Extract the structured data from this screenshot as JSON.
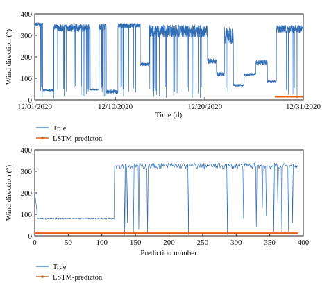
{
  "chart_data": [
    {
      "type": "line",
      "xlabel": "Time (d)",
      "ylabel": "Wind direction (°)",
      "x_ticks": [
        "12/01/2020",
        "12/10/2020",
        "12/20/2020",
        "12/31/2020"
      ],
      "x_tick_days": [
        0,
        9,
        19,
        30
      ],
      "xlim_days": [
        0,
        30
      ],
      "ylim": [
        0,
        400
      ],
      "y_ticks": [
        0,
        100,
        200,
        300,
        400
      ],
      "grid": false,
      "legend_position": "bottom-left-outside",
      "series": [
        {
          "name": "True",
          "color": "#2f6db5",
          "segments": [
            {
              "start_day": 0.0,
              "end_day": 0.9,
              "level": 350,
              "noise": 10,
              "dips": true
            },
            {
              "start_day": 0.9,
              "end_day": 2.1,
              "level": 45,
              "noise": 4,
              "dips": false
            },
            {
              "start_day": 2.1,
              "end_day": 6.2,
              "level": 335,
              "noise": 18,
              "dips": true
            },
            {
              "start_day": 6.2,
              "end_day": 7.2,
              "level": 48,
              "noise": 4,
              "dips": false
            },
            {
              "start_day": 7.2,
              "end_day": 8.0,
              "level": 340,
              "noise": 14,
              "dips": true
            },
            {
              "start_day": 8.0,
              "end_day": 9.3,
              "level": 38,
              "noise": 10,
              "dips": false
            },
            {
              "start_day": 9.3,
              "end_day": 11.8,
              "level": 345,
              "noise": 12,
              "dips": true
            },
            {
              "start_day": 11.8,
              "end_day": 12.8,
              "level": 165,
              "noise": 8,
              "dips": false
            },
            {
              "start_day": 12.8,
              "end_day": 19.3,
              "level": 320,
              "noise": 30,
              "dips": true
            },
            {
              "start_day": 19.3,
              "end_day": 20.3,
              "level": 180,
              "noise": 12,
              "dips": false
            },
            {
              "start_day": 20.3,
              "end_day": 21.2,
              "level": 120,
              "noise": 10,
              "dips": false
            },
            {
              "start_day": 21.2,
              "end_day": 22.2,
              "level": 300,
              "noise": 40,
              "dips": true
            },
            {
              "start_day": 22.2,
              "end_day": 23.4,
              "level": 68,
              "noise": 6,
              "dips": false
            },
            {
              "start_day": 23.4,
              "end_day": 24.7,
              "level": 118,
              "noise": 6,
              "dips": false
            },
            {
              "start_day": 24.7,
              "end_day": 26.0,
              "level": 175,
              "noise": 12,
              "dips": false
            },
            {
              "start_day": 26.0,
              "end_day": 27.0,
              "level": 85,
              "noise": 4,
              "dips": false
            },
            {
              "start_day": 27.0,
              "end_day": 30.0,
              "level": 330,
              "noise": 18,
              "dips": true
            }
          ]
        },
        {
          "name": "LSTM-predicton",
          "color": "#e0621b",
          "start_day": 26.8,
          "end_day": 30.0,
          "value": 15
        }
      ]
    },
    {
      "type": "line",
      "xlabel": "Prediction number",
      "ylabel": "Wind direction (°)",
      "xlim": [
        0,
        400
      ],
      "x_ticks": [
        0,
        50,
        100,
        150,
        200,
        250,
        300,
        350,
        400
      ],
      "ylim": [
        0,
        400
      ],
      "y_ticks": [
        0,
        100,
        200,
        300,
        400
      ],
      "grid": false,
      "legend_position": "bottom-left-outside",
      "series": [
        {
          "name": "True",
          "color": "#2f6db5",
          "segments": [
            {
              "start": 0,
              "end": 4,
              "level": 150,
              "noise": 40
            },
            {
              "start": 4,
              "end": 119,
              "level": 80,
              "noise": 3
            },
            {
              "start": 119,
              "end": 393,
              "level": 325,
              "noise": 14
            }
          ],
          "dips": [
            {
              "x": 134,
              "y": 5
            },
            {
              "x": 138,
              "y": 60
            },
            {
              "x": 147,
              "y": 15
            },
            {
              "x": 155,
              "y": 30
            },
            {
              "x": 168,
              "y": 10
            },
            {
              "x": 229,
              "y": 5
            },
            {
              "x": 287,
              "y": 5
            },
            {
              "x": 311,
              "y": 80
            },
            {
              "x": 330,
              "y": 40
            },
            {
              "x": 339,
              "y": 130
            },
            {
              "x": 345,
              "y": 90
            },
            {
              "x": 356,
              "y": 20
            },
            {
              "x": 362,
              "y": 150
            },
            {
              "x": 368,
              "y": 10
            },
            {
              "x": 378,
              "y": 20
            },
            {
              "x": 384,
              "y": 60
            }
          ]
        },
        {
          "name": "LSTM-predicton",
          "color": "#e0621b",
          "start": 0,
          "end": 392,
          "value": 12
        }
      ]
    }
  ]
}
